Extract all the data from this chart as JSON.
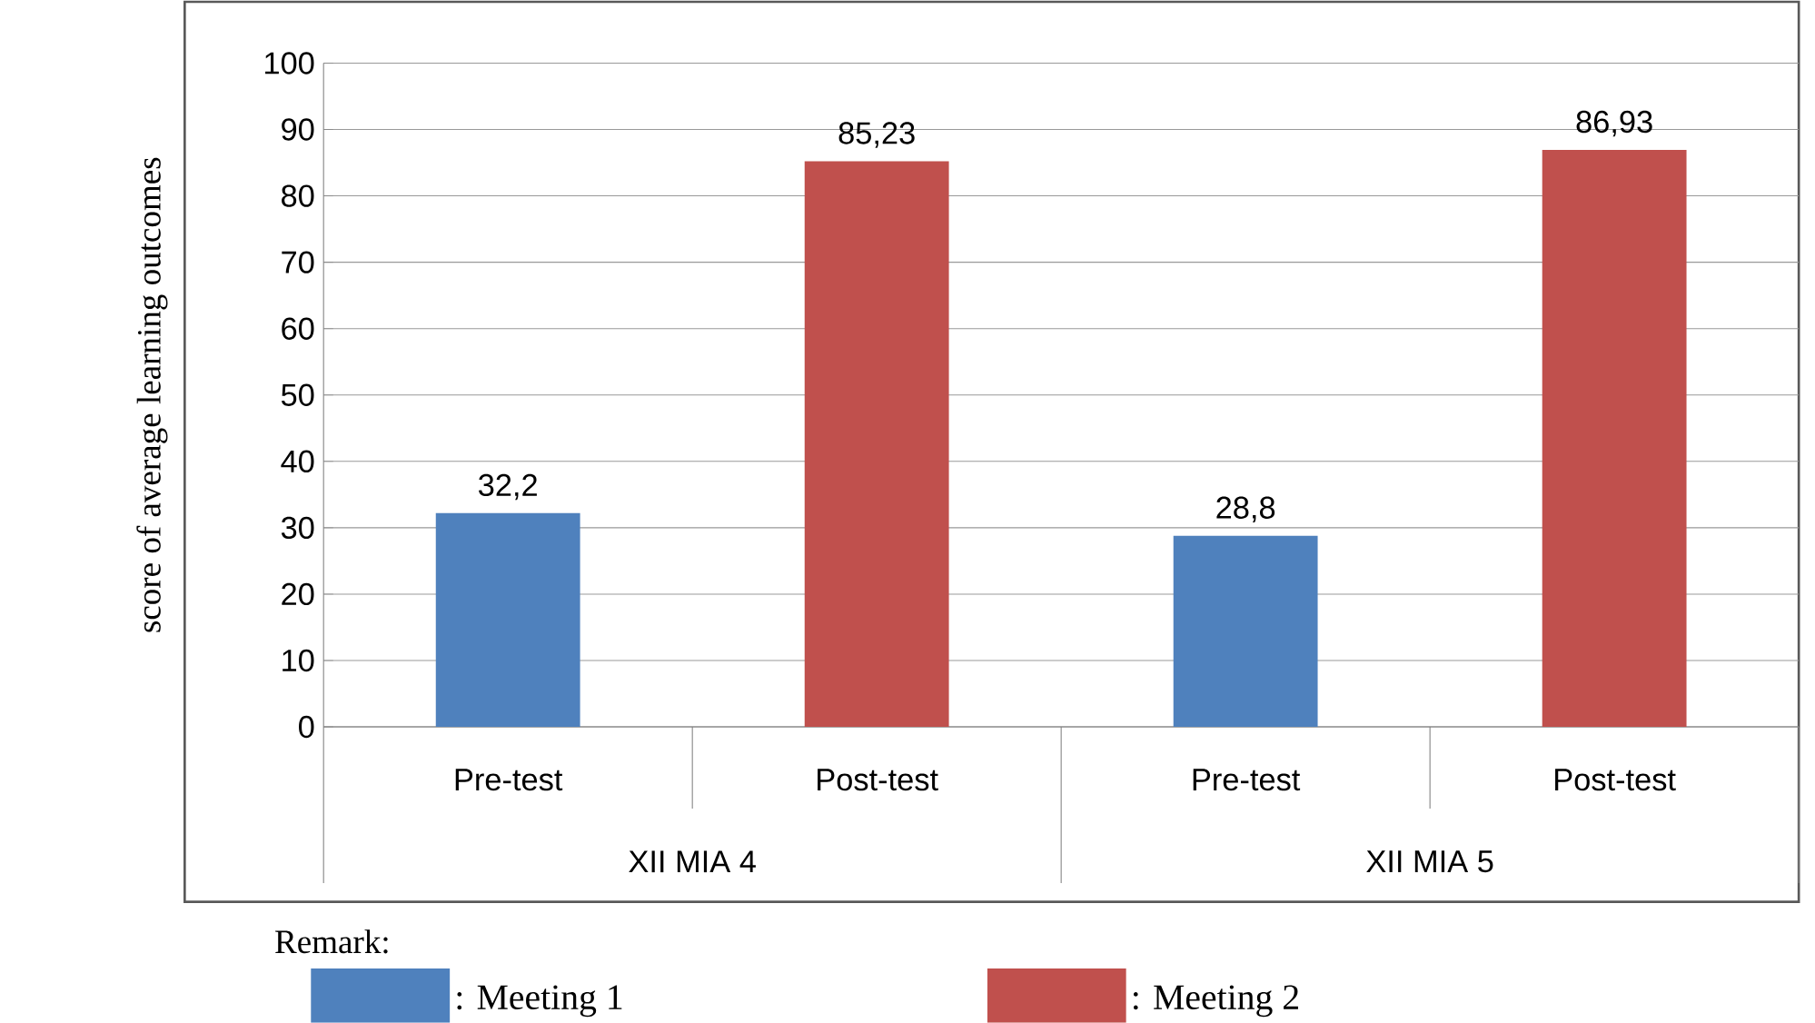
{
  "chart_data": {
    "type": "bar",
    "ylabel": "score of average learning outcomes",
    "legend_title": "Remark:",
    "categories": [
      "Pre-test",
      "Post-test",
      "Pre-test",
      "Post-test"
    ],
    "annotations": [
      "XII MIA 4",
      "XII MIA 5"
    ],
    "series": [
      {
        "name": ": Meeting 1",
        "color": "#4f81bd",
        "values": [
          32.2,
          null,
          28.8,
          null
        ],
        "value_labels": [
          "32,2",
          null,
          "28,8",
          null
        ]
      },
      {
        "name": ": Meeting 2",
        "color": "#c0504d",
        "values": [
          null,
          85.23,
          null,
          86.93
        ],
        "value_labels": [
          null,
          "85,23",
          null,
          "86,93"
        ]
      }
    ],
    "ylim": [
      0,
      100
    ],
    "yticks": [
      0,
      10,
      20,
      30,
      40,
      50,
      60,
      70,
      80,
      90,
      100
    ],
    "grid": "y",
    "legend": "bottom"
  }
}
